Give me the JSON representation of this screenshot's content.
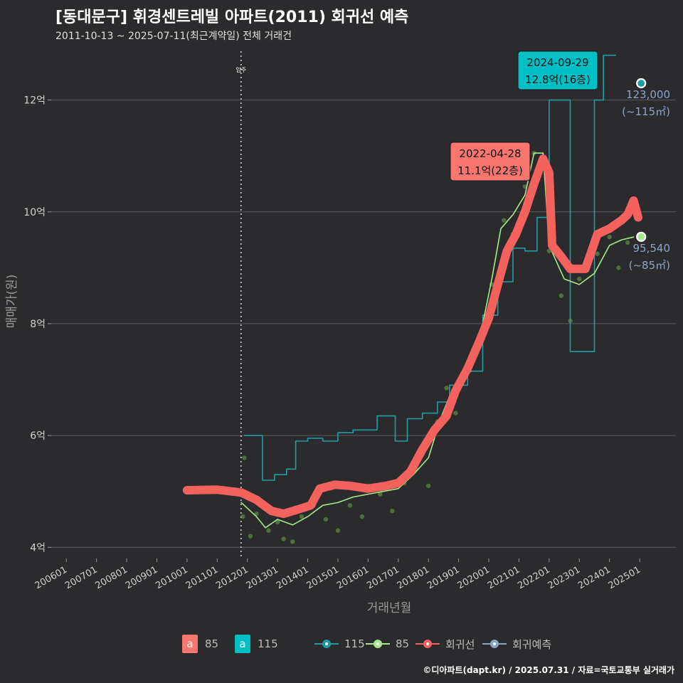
{
  "header": {
    "title": "[동대문구] 휘경센트레빌 아파트(2011) 회귀선 예측",
    "subtitle": "2011-10-13 ~ 2025-07-11(최근계약일) 전체 거래건"
  },
  "footer": {
    "credit": "©디아파트(dapt.kr) / 2025.07.31 / 자료=국토교통부 실거래가"
  },
  "colors": {
    "background": "#2b2b2d",
    "grid": "#5a5a5e",
    "reg_line": "#f4625e",
    "s85_line": "#a6e88a",
    "s115_line": "#1f9da6",
    "points": "#6aa84f",
    "pred": "#8ca3c8",
    "callout_red": "#f8766d",
    "callout_cyan": "#00bfc4"
  },
  "legend": {
    "area_a_85": {
      "key": "a",
      "label": "85"
    },
    "area_a_115": {
      "key": "a",
      "label": "115"
    },
    "line_115": "115",
    "line_85": "85",
    "reg": "회귀선",
    "pred": "회귀예측"
  },
  "chart_data": {
    "type": "line",
    "xlabel": "거래년월",
    "ylabel": "매매가(원)",
    "x_ticks": [
      "200601",
      "200701",
      "200801",
      "200901",
      "201001",
      "201101",
      "201201",
      "201301",
      "201401",
      "201501",
      "201601",
      "201701",
      "201801",
      "201901",
      "202001",
      "202101",
      "202201",
      "202301",
      "202401",
      "202501"
    ],
    "y_ticks": [
      {
        "value": 4,
        "label": "4억"
      },
      {
        "value": 6,
        "label": "6억"
      },
      {
        "value": 8,
        "label": "8억"
      },
      {
        "value": 10,
        "label": "10억"
      },
      {
        "value": 12,
        "label": "12억"
      }
    ],
    "ylim": [
      3.8,
      13.0
    ],
    "xlim": [
      2005.5,
      2026.2
    ],
    "vline": {
      "x": 2011.79,
      "label": "입주"
    },
    "series": [
      {
        "name": "회귀선",
        "points": [
          [
            2010.0,
            5.02
          ],
          [
            2011.0,
            5.03
          ],
          [
            2011.8,
            4.98
          ],
          [
            2012.3,
            4.85
          ],
          [
            2012.8,
            4.65
          ],
          [
            2013.2,
            4.6
          ],
          [
            2013.7,
            4.68
          ],
          [
            2014.1,
            4.75
          ],
          [
            2014.4,
            5.05
          ],
          [
            2014.9,
            5.12
          ],
          [
            2015.4,
            5.1
          ],
          [
            2016.0,
            5.05
          ],
          [
            2016.6,
            5.1
          ],
          [
            2017.0,
            5.15
          ],
          [
            2017.4,
            5.35
          ],
          [
            2017.8,
            5.75
          ],
          [
            2018.2,
            6.1
          ],
          [
            2018.6,
            6.35
          ],
          [
            2018.9,
            6.8
          ],
          [
            2019.3,
            7.2
          ],
          [
            2019.7,
            7.7
          ],
          [
            2020.0,
            8.1
          ],
          [
            2020.3,
            8.7
          ],
          [
            2020.6,
            9.3
          ],
          [
            2020.9,
            9.6
          ],
          [
            2021.2,
            10.0
          ],
          [
            2021.5,
            10.5
          ],
          [
            2021.8,
            10.95
          ],
          [
            2022.0,
            10.7
          ],
          [
            2022.1,
            9.4
          ],
          [
            2022.4,
            9.2
          ],
          [
            2022.7,
            8.98
          ],
          [
            2023.2,
            8.98
          ],
          [
            2023.6,
            9.6
          ],
          [
            2024.0,
            9.7
          ],
          [
            2024.4,
            9.85
          ],
          [
            2024.6,
            9.95
          ],
          [
            2024.8,
            10.2
          ],
          [
            2024.95,
            9.9
          ]
        ]
      },
      {
        "name": "85",
        "points": [
          [
            2011.8,
            4.8
          ],
          [
            2012.3,
            4.55
          ],
          [
            2012.6,
            4.35
          ],
          [
            2013.0,
            4.5
          ],
          [
            2013.5,
            4.4
          ],
          [
            2014.0,
            4.55
          ],
          [
            2014.5,
            4.75
          ],
          [
            2015.0,
            4.8
          ],
          [
            2015.5,
            4.9
          ],
          [
            2016.0,
            4.95
          ],
          [
            2016.5,
            5.0
          ],
          [
            2017.0,
            5.05
          ],
          [
            2017.5,
            5.3
          ],
          [
            2018.0,
            5.6
          ],
          [
            2018.4,
            6.3
          ],
          [
            2018.7,
            6.7
          ],
          [
            2019.0,
            6.9
          ],
          [
            2019.4,
            7.15
          ],
          [
            2019.8,
            8.0
          ],
          [
            2020.1,
            8.8
          ],
          [
            2020.4,
            9.7
          ],
          [
            2020.8,
            9.95
          ],
          [
            2021.2,
            10.3
          ],
          [
            2021.5,
            11.05
          ],
          [
            2021.8,
            11.05
          ],
          [
            2022.0,
            9.4
          ],
          [
            2022.5,
            8.8
          ],
          [
            2023.0,
            8.7
          ],
          [
            2023.5,
            8.9
          ],
          [
            2024.0,
            9.4
          ],
          [
            2024.4,
            9.5
          ],
          [
            2024.8,
            9.55
          ]
        ]
      },
      {
        "name": "115",
        "points": [
          [
            2011.9,
            6.0
          ],
          [
            2012.4,
            6.0
          ],
          [
            2012.5,
            5.2
          ],
          [
            2012.9,
            5.3
          ],
          [
            2013.3,
            5.4
          ],
          [
            2013.6,
            5.9
          ],
          [
            2014.0,
            5.95
          ],
          [
            2014.5,
            5.9
          ],
          [
            2015.0,
            6.05
          ],
          [
            2015.5,
            6.1
          ],
          [
            2016.0,
            6.1
          ],
          [
            2016.3,
            6.35
          ],
          [
            2016.9,
            5.9
          ],
          [
            2017.3,
            6.3
          ],
          [
            2017.8,
            6.4
          ],
          [
            2018.3,
            6.6
          ],
          [
            2018.7,
            6.9
          ],
          [
            2019.3,
            7.15
          ],
          [
            2019.8,
            8.15
          ],
          [
            2020.3,
            8.75
          ],
          [
            2020.8,
            9.35
          ],
          [
            2021.2,
            9.3
          ],
          [
            2021.6,
            9.9
          ],
          [
            2022.0,
            12.0
          ],
          [
            2022.4,
            12.0
          ],
          [
            2022.7,
            7.5
          ],
          [
            2023.1,
            7.5
          ],
          [
            2023.5,
            12.0
          ],
          [
            2023.8,
            12.8
          ],
          [
            2024.2,
            12.8
          ]
        ]
      }
    ],
    "scatter": [
      [
        2011.85,
        4.55
      ],
      [
        2011.9,
        5.6
      ],
      [
        2012.1,
        4.2
      ],
      [
        2012.3,
        4.6
      ],
      [
        2012.7,
        4.3
      ],
      [
        2013.0,
        4.45
      ],
      [
        2013.2,
        4.15
      ],
      [
        2013.5,
        4.1
      ],
      [
        2013.8,
        4.55
      ],
      [
        2014.2,
        4.75
      ],
      [
        2014.6,
        4.5
      ],
      [
        2015.0,
        4.3
      ],
      [
        2015.4,
        4.75
      ],
      [
        2015.8,
        4.55
      ],
      [
        2016.0,
        5.1
      ],
      [
        2016.4,
        4.95
      ],
      [
        2016.8,
        4.65
      ],
      [
        2017.2,
        5.15
      ],
      [
        2017.6,
        5.4
      ],
      [
        2018.0,
        5.1
      ],
      [
        2018.3,
        6.25
      ],
      [
        2018.6,
        6.85
      ],
      [
        2018.9,
        6.4
      ],
      [
        2019.2,
        7.05
      ],
      [
        2019.5,
        7.35
      ],
      [
        2019.8,
        7.9
      ],
      [
        2020.1,
        8.7
      ],
      [
        2020.5,
        9.85
      ],
      [
        2020.8,
        9.6
      ],
      [
        2021.2,
        10.45
      ],
      [
        2021.5,
        11.05
      ],
      [
        2022.0,
        9.3
      ],
      [
        2022.4,
        8.5
      ],
      [
        2022.7,
        8.05
      ],
      [
        2023.0,
        8.8
      ],
      [
        2023.3,
        9.1
      ],
      [
        2023.6,
        9.25
      ],
      [
        2024.0,
        9.55
      ],
      [
        2024.3,
        9.0
      ],
      [
        2024.6,
        9.45
      ]
    ],
    "predictions": [
      {
        "name": "115",
        "x": 2025.05,
        "y": 12.3,
        "value_label": "123,000",
        "area_label": "(~115㎡)"
      },
      {
        "name": "85",
        "x": 2025.05,
        "y": 9.554,
        "value_label": "95,540",
        "area_label": "(~85㎡)"
      }
    ],
    "callouts": [
      {
        "series": "85",
        "x": 2021.8,
        "y": 11.1,
        "date": "2022-04-28",
        "text": "11.1억(22층)"
      },
      {
        "series": "115",
        "x": 2023.8,
        "y": 12.8,
        "date": "2024-09-29",
        "text": "12.8억(16층)"
      }
    ]
  }
}
